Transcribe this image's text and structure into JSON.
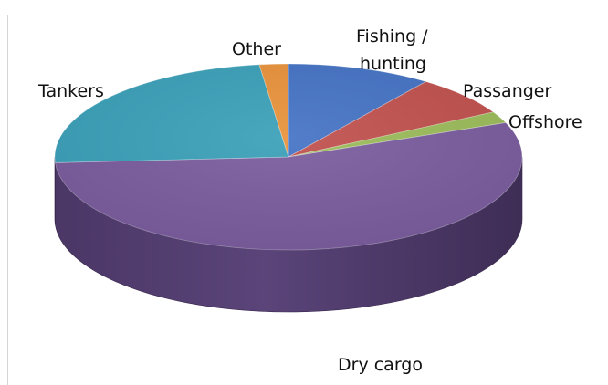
{
  "chart_data": {
    "type": "pie",
    "title": "",
    "three_d": true,
    "legend": "none",
    "slices": [
      {
        "label": "Fishing / hunting",
        "value": 10,
        "color": "#4472C4"
      },
      {
        "label": "Passanger",
        "value": 7,
        "color": "#C0504D"
      },
      {
        "label": "Offshore",
        "value": 2,
        "color": "#9BBB59"
      },
      {
        "label": "Dry cargo",
        "value": 55,
        "color": "#7A5C9E"
      },
      {
        "label": "Tankers",
        "value": 24,
        "color": "#3AA0B8"
      },
      {
        "label": "Other",
        "value": 2,
        "color": "#E8923A"
      }
    ]
  }
}
